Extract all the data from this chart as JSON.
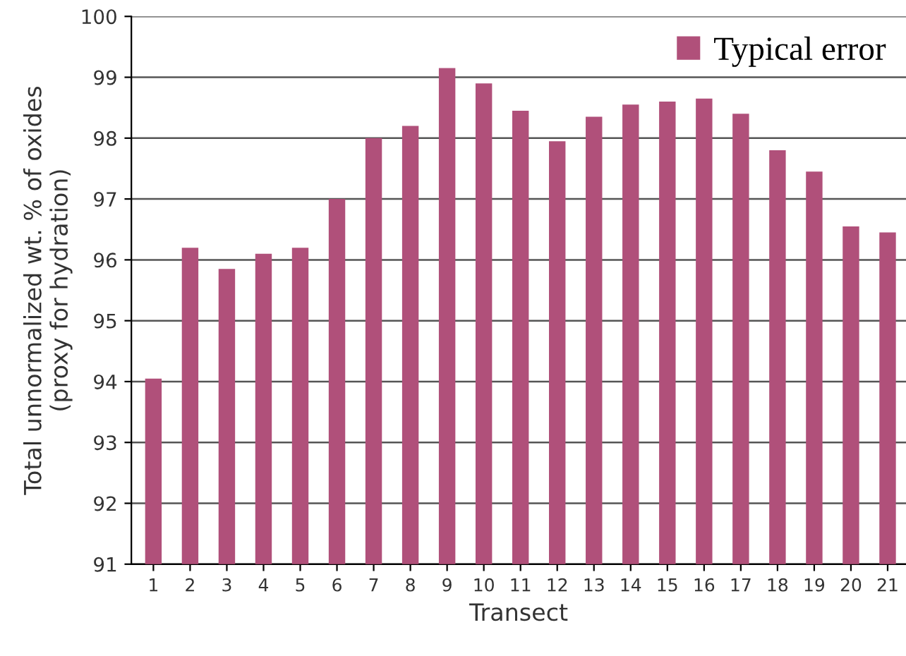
{
  "chart_data": {
    "type": "bar",
    "xlabel": "Transect",
    "ylabel": "Total unnormalized wt. % of oxides\n(proxy for hydration)",
    "categories": [
      "1",
      "2",
      "3",
      "4",
      "5",
      "6",
      "7",
      "8",
      "9",
      "10",
      "11",
      "12",
      "13",
      "14",
      "15",
      "16",
      "17",
      "18",
      "19",
      "20",
      "21"
    ],
    "series": [
      {
        "name": "Typical error",
        "color": "#b0507a",
        "values": [
          94.05,
          96.2,
          95.85,
          96.1,
          96.2,
          97.0,
          98.0,
          98.2,
          99.15,
          98.9,
          98.45,
          97.95,
          98.35,
          98.55,
          98.6,
          98.65,
          98.4,
          97.8,
          97.45,
          96.55,
          96.45
        ]
      }
    ],
    "ylim": [
      91,
      100
    ],
    "yticks": [
      91,
      92,
      93,
      94,
      95,
      96,
      97,
      98,
      99,
      100
    ],
    "grid": "y",
    "legend": "top right"
  }
}
